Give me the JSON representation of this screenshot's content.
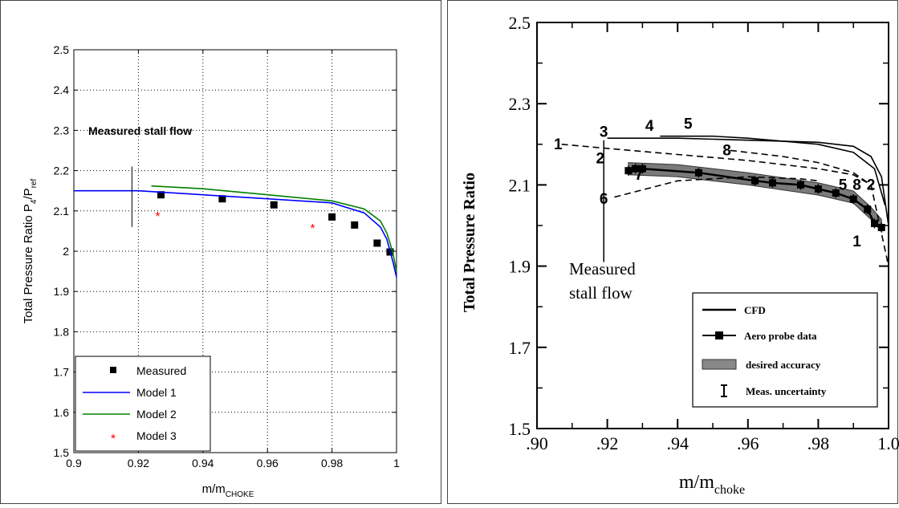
{
  "chart_data": [
    {
      "type": "line",
      "xlabel_main": "m/m",
      "xlabel_sub": "CHOKE",
      "ylabel_main": "Total Pressure Ratio P",
      "ylabel_sub1": "4",
      "ylabel_mid": "/P",
      "ylabel_sub2": "ref",
      "xlim": [
        0.9,
        1.0
      ],
      "ylim": [
        1.5,
        2.5
      ],
      "x_ticks": [
        "0.9",
        "0.92",
        "0.94",
        "0.96",
        "0.98",
        "1"
      ],
      "y_ticks": [
        "1.5",
        "1.6",
        "1.7",
        "1.8",
        "1.9",
        "2",
        "2.1",
        "2.2",
        "2.3",
        "2.4",
        "2.5"
      ],
      "grid": true,
      "annotation": "Measured stall flow",
      "stall_flow_x": 0.918,
      "legend_position": "bottom-left",
      "series": [
        {
          "name": "Measured",
          "kind": "marker-square",
          "color": "#000000",
          "x": [
            0.927,
            0.946,
            0.962,
            0.98,
            0.987,
            0.994,
            0.998
          ],
          "y": [
            2.14,
            2.13,
            2.115,
            2.085,
            2.065,
            2.02,
            1.998
          ]
        },
        {
          "name": "Model 1",
          "kind": "line",
          "color": "#0000ff",
          "x": [
            0.9,
            0.92,
            0.94,
            0.96,
            0.98,
            0.99,
            0.995,
            0.997,
            0.998,
            0.999,
            1.0
          ],
          "y": [
            2.15,
            2.15,
            2.14,
            2.13,
            2.12,
            2.095,
            2.06,
            2.03,
            2.0,
            1.97,
            1.935
          ]
        },
        {
          "name": "Model 2",
          "kind": "line",
          "color": "#008000",
          "x": [
            0.924,
            0.94,
            0.96,
            0.98,
            0.99,
            0.995,
            0.997,
            0.998,
            0.999,
            1.0
          ],
          "y": [
            2.162,
            2.155,
            2.14,
            2.125,
            2.105,
            2.075,
            2.045,
            2.02,
            1.99,
            1.95
          ]
        },
        {
          "name": "Model 3",
          "kind": "marker-star",
          "color": "#ff0000",
          "x": [
            0.926,
            0.974
          ],
          "y": [
            2.09,
            2.06
          ]
        }
      ]
    },
    {
      "type": "line",
      "xlabel_main": "m/m",
      "xlabel_sub": "choke",
      "ylabel": "Total Pressure Ratio",
      "xlim": [
        0.9,
        1.0
      ],
      "ylim": [
        1.5,
        2.5
      ],
      "x_ticks": [
        ".90",
        ".92",
        ".94",
        ".96",
        ".98",
        "1.0"
      ],
      "y_ticks": [
        "1.5",
        "1.7",
        "1.9",
        "2.1",
        "2.3",
        "2.5"
      ],
      "grid": false,
      "annotation_line1": "Measured",
      "annotation_line2": "stall flow",
      "stall_flow_x": 0.919,
      "legend_position": "bottom-right",
      "legend": [
        "CFD",
        "Aero probe data",
        "desired accuracy",
        "Meas. uncertainty"
      ],
      "curve_labels": [
        {
          "text": "1",
          "x": 0.906,
          "y": 2.2
        },
        {
          "text": "3",
          "x": 0.919,
          "y": 2.23
        },
        {
          "text": "4",
          "x": 0.932,
          "y": 2.245
        },
        {
          "text": "5",
          "x": 0.943,
          "y": 2.25
        },
        {
          "text": "8",
          "x": 0.954,
          "y": 2.185
        },
        {
          "text": "2",
          "x": 0.918,
          "y": 2.165
        },
        {
          "text": "7",
          "x": 0.929,
          "y": 2.125
        },
        {
          "text": "6",
          "x": 0.919,
          "y": 2.065
        },
        {
          "text": "5",
          "x": 0.987,
          "y": 2.1
        },
        {
          "text": "8",
          "x": 0.991,
          "y": 2.1
        },
        {
          "text": "2",
          "x": 0.995,
          "y": 2.1
        },
        {
          "text": "1",
          "x": 0.991,
          "y": 1.96
        }
      ],
      "series": [
        {
          "name": "CFD",
          "kind": "line",
          "style": "solid",
          "color": "#000000",
          "x": [
            0.92,
            0.94,
            0.96,
            0.98,
            0.99,
            0.995,
            0.998,
            1.0
          ],
          "y": [
            2.215,
            2.215,
            2.21,
            2.205,
            2.195,
            2.17,
            2.12,
            2.0
          ]
        },
        {
          "name": "",
          "kind": "line",
          "style": "solid",
          "color": "#000000",
          "x": [
            0.935,
            0.95,
            0.96,
            0.98,
            0.99,
            0.996,
            0.999
          ],
          "y": [
            2.22,
            2.22,
            2.215,
            2.2,
            2.18,
            2.14,
            2.05
          ]
        },
        {
          "name": "",
          "kind": "line",
          "style": "dashed",
          "color": "#000000",
          "x": [
            0.907,
            0.92,
            0.94,
            0.96,
            0.98,
            0.99,
            0.995,
            1.0
          ],
          "y": [
            2.2,
            2.19,
            2.175,
            2.16,
            2.14,
            2.125,
            2.1,
            1.9
          ]
        },
        {
          "name": "",
          "kind": "line",
          "style": "dashed",
          "color": "#000000",
          "x": [
            0.922,
            0.94,
            0.96,
            0.975,
            0.98
          ],
          "y": [
            2.07,
            2.11,
            2.12,
            2.115,
            2.11
          ]
        },
        {
          "name": "",
          "kind": "line",
          "style": "dashed",
          "color": "#000000",
          "x": [
            0.955,
            0.97,
            0.98,
            0.99,
            0.995
          ],
          "y": [
            2.185,
            2.17,
            2.155,
            2.13,
            2.1
          ]
        },
        {
          "name": "Aero probe data",
          "kind": "marker-line",
          "color": "#000000",
          "x": [
            0.926,
            0.928,
            0.93,
            0.946,
            0.962,
            0.967,
            0.975,
            0.98,
            0.985,
            0.99,
            0.994,
            0.996,
            0.998
          ],
          "y": [
            2.135,
            2.14,
            2.14,
            2.13,
            2.11,
            2.105,
            2.1,
            2.09,
            2.08,
            2.065,
            2.04,
            2.005,
            1.995
          ]
        }
      ],
      "band": {
        "name": "desired accuracy",
        "x": [
          0.926,
          0.94,
          0.96,
          0.98,
          0.99,
          0.995,
          0.998
        ],
        "y_center": [
          2.14,
          2.135,
          2.115,
          2.09,
          2.07,
          2.03,
          2.0
        ],
        "half_width": 0.015
      }
    }
  ]
}
